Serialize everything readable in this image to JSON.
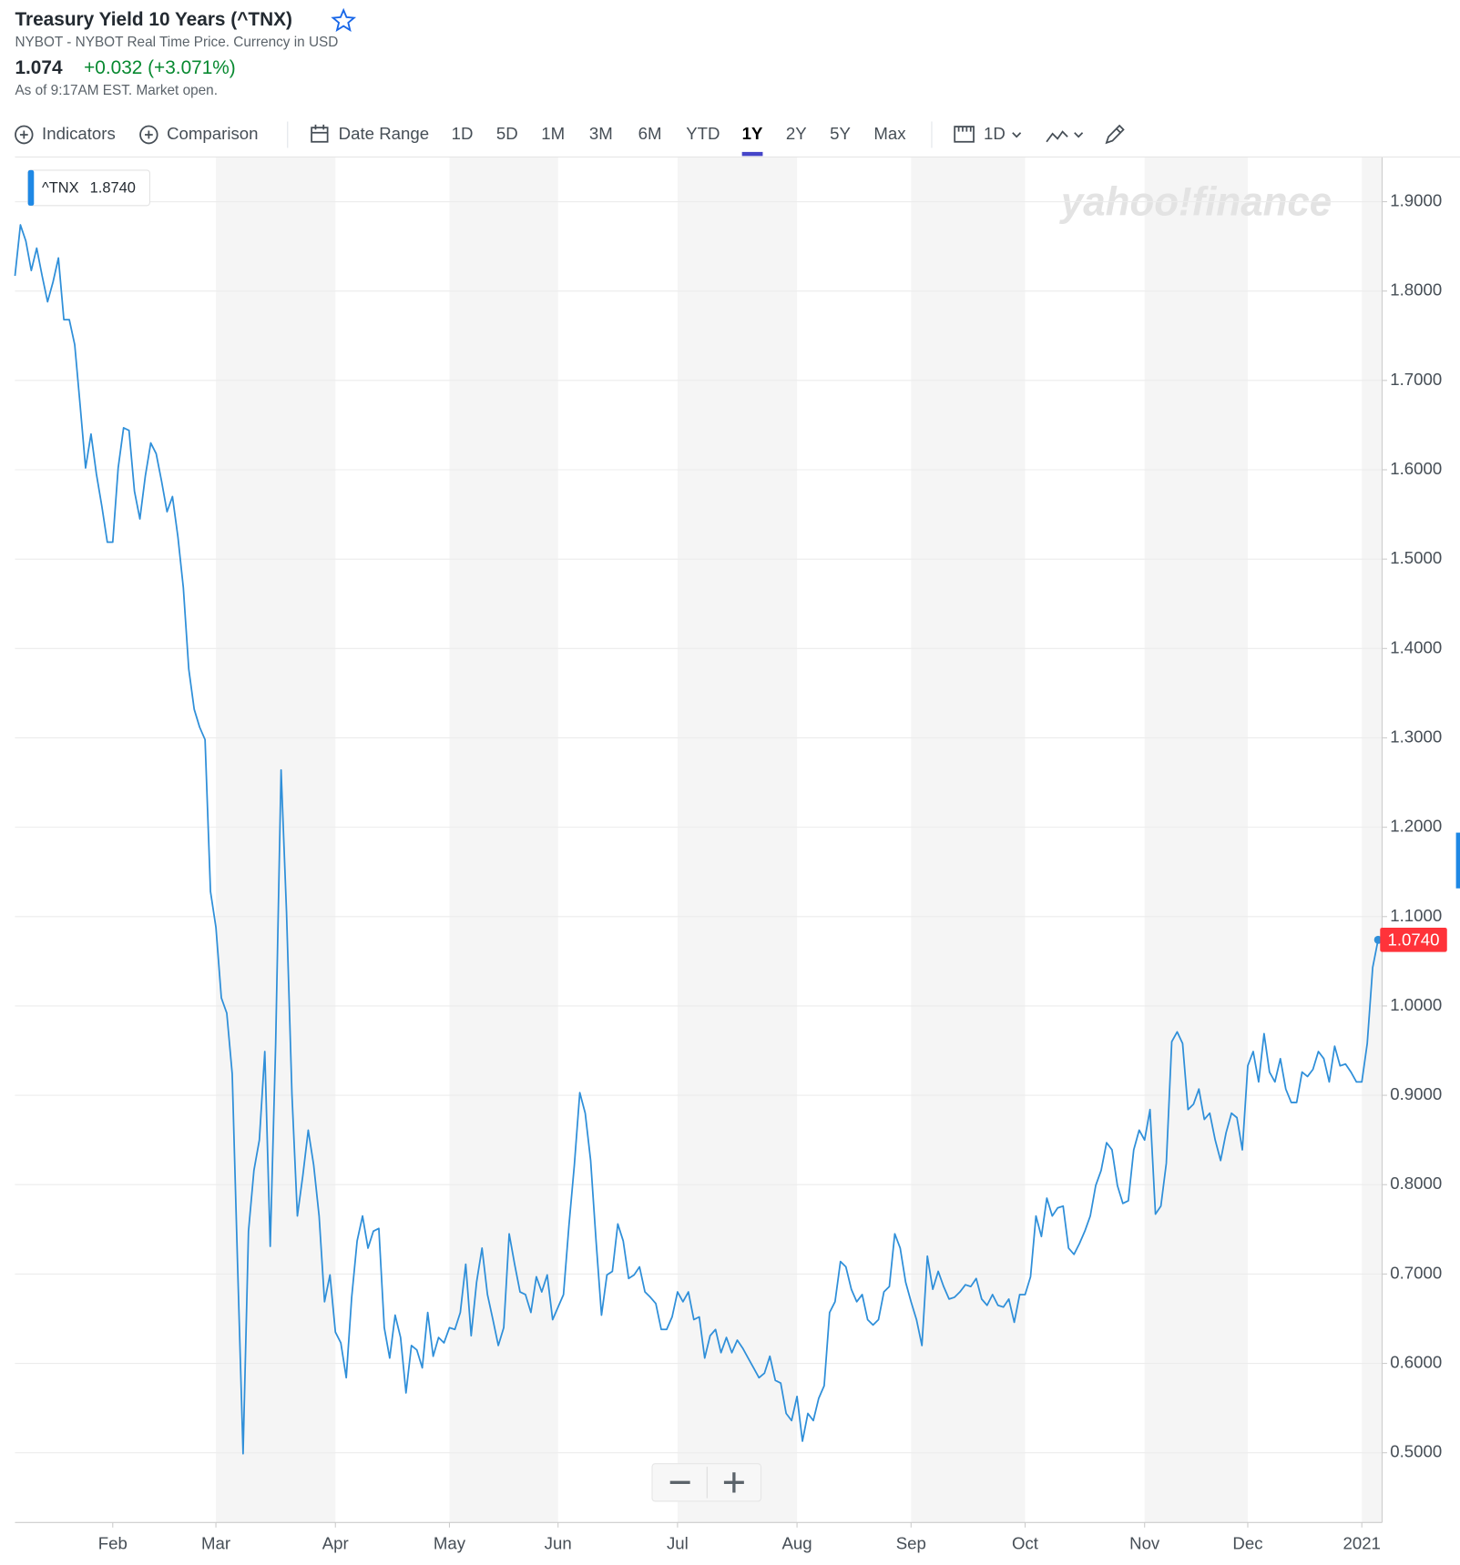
{
  "header": {
    "title": "Treasury Yield 10 Years (^TNX)",
    "subtitle": "NYBOT - NYBOT Real Time Price. Currency in USD",
    "price": 1.074,
    "change": "+0.032 (+3.071%)",
    "as_of": "As of 9:17AM EST. Market open."
  },
  "toolbar": {
    "indicators": "Indicators",
    "comparison": "Comparison",
    "date_range": "Date Range",
    "ranges": [
      "1D",
      "5D",
      "1M",
      "3M",
      "6M",
      "YTD",
      "1Y",
      "2Y",
      "5Y",
      "Max"
    ],
    "selected_range": "1Y",
    "interval": "1D"
  },
  "chart_data": {
    "type": "line",
    "watermark": "yahoo!finance",
    "tooltip": {
      "value": 1.874,
      "label": "1.8740"
    },
    "last_price": {
      "value": 1.074,
      "label": "1.0740"
    },
    "ylim": [
      0.422,
      1.95
    ],
    "grid": true,
    "shaded_months": true,
    "yticks": [
      {
        "value": 0.5,
        "label": "0.5000"
      },
      {
        "value": 0.6,
        "label": "0.6000"
      },
      {
        "value": 0.7,
        "label": "0.7000"
      },
      {
        "value": 0.8,
        "label": "0.8000"
      },
      {
        "value": 0.9,
        "label": "0.9000"
      },
      {
        "value": 1.0,
        "label": "1.0000"
      },
      {
        "value": 1.1,
        "label": "1.1000"
      },
      {
        "value": 1.2,
        "label": "1.2000"
      },
      {
        "value": 1.3,
        "label": "1.3000"
      },
      {
        "value": 1.4,
        "label": "1.4000"
      },
      {
        "value": 1.5,
        "label": "1.5000"
      },
      {
        "value": 1.6,
        "label": "1.6000"
      },
      {
        "value": 1.7,
        "label": "1.7000"
      },
      {
        "value": 1.8,
        "label": "1.8000"
      },
      {
        "value": 1.9,
        "label": "1.9000"
      }
    ],
    "categories": [
      null,
      null,
      null,
      null,
      null,
      null,
      null,
      null,
      null,
      null,
      null,
      null,
      null,
      null,
      null,
      null,
      null,
      null,
      "Feb",
      null,
      null,
      null,
      null,
      null,
      null,
      null,
      null,
      null,
      null,
      null,
      null,
      null,
      null,
      null,
      null,
      null,
      null,
      "Mar",
      null,
      null,
      null,
      null,
      null,
      null,
      null,
      null,
      null,
      null,
      null,
      null,
      null,
      null,
      null,
      null,
      null,
      null,
      null,
      null,
      null,
      "Apr",
      null,
      null,
      null,
      null,
      null,
      null,
      null,
      null,
      null,
      null,
      null,
      null,
      null,
      null,
      null,
      null,
      null,
      null,
      null,
      null,
      "May",
      null,
      null,
      null,
      null,
      null,
      null,
      null,
      null,
      null,
      null,
      null,
      null,
      null,
      null,
      null,
      null,
      null,
      null,
      null,
      "Jun",
      null,
      null,
      null,
      null,
      null,
      null,
      null,
      null,
      null,
      null,
      null,
      null,
      null,
      null,
      null,
      null,
      null,
      null,
      null,
      null,
      null,
      "Jul",
      null,
      null,
      null,
      null,
      null,
      null,
      null,
      null,
      null,
      null,
      null,
      null,
      null,
      null,
      null,
      null,
      null,
      null,
      null,
      null,
      null,
      "Aug",
      null,
      null,
      null,
      null,
      null,
      null,
      null,
      null,
      null,
      null,
      null,
      null,
      null,
      null,
      null,
      null,
      null,
      null,
      null,
      null,
      "Sep",
      null,
      null,
      null,
      null,
      null,
      null,
      null,
      null,
      null,
      null,
      null,
      null,
      null,
      null,
      null,
      null,
      null,
      null,
      null,
      null,
      "Oct",
      null,
      null,
      null,
      null,
      null,
      null,
      null,
      null,
      null,
      null,
      null,
      null,
      null,
      null,
      null,
      null,
      null,
      null,
      null,
      null,
      null,
      "Nov",
      null,
      null,
      null,
      null,
      null,
      null,
      null,
      null,
      null,
      null,
      null,
      null,
      null,
      null,
      null,
      null,
      null,
      null,
      "Dec",
      null,
      null,
      null,
      null,
      null,
      null,
      null,
      null,
      null,
      null,
      null,
      null,
      null,
      null,
      null,
      null,
      null,
      null,
      null,
      null,
      "2021",
      null,
      null,
      null
    ],
    "series": [
      {
        "name": "^TNX",
        "color": "#2f8fd9",
        "values": [
          1.817,
          1.874,
          1.856,
          1.823,
          1.848,
          1.817,
          1.788,
          1.81,
          1.837,
          1.768,
          1.768,
          1.74,
          1.672,
          1.602,
          1.64,
          1.595,
          1.559,
          1.519,
          1.519,
          1.602,
          1.647,
          1.644,
          1.576,
          1.545,
          1.593,
          1.63,
          1.618,
          1.587,
          1.553,
          1.57,
          1.525,
          1.468,
          1.377,
          1.332,
          1.312,
          1.298,
          1.128,
          1.088,
          1.009,
          0.992,
          0.924,
          0.708,
          0.499,
          0.748,
          0.816,
          0.85,
          0.949,
          0.731,
          0.958,
          1.264,
          1.105,
          0.901,
          0.765,
          0.81,
          0.861,
          0.822,
          0.765,
          0.669,
          0.699,
          0.635,
          0.623,
          0.584,
          0.674,
          0.737,
          0.765,
          0.729,
          0.748,
          0.751,
          0.64,
          0.606,
          0.654,
          0.629,
          0.567,
          0.62,
          0.615,
          0.595,
          0.657,
          0.608,
          0.629,
          0.623,
          0.64,
          0.638,
          0.657,
          0.711,
          0.631,
          0.691,
          0.729,
          0.677,
          0.649,
          0.62,
          0.64,
          0.745,
          0.711,
          0.68,
          0.677,
          0.657,
          0.697,
          0.68,
          0.699,
          0.649,
          0.663,
          0.677,
          0.754,
          0.822,
          0.903,
          0.88,
          0.827,
          0.737,
          0.654,
          0.699,
          0.703,
          0.756,
          0.737,
          0.695,
          0.699,
          0.708,
          0.68,
          0.674,
          0.667,
          0.638,
          0.638,
          0.652,
          0.68,
          0.669,
          0.68,
          0.649,
          0.652,
          0.606,
          0.631,
          0.638,
          0.612,
          0.629,
          0.612,
          0.626,
          0.617,
          0.606,
          0.595,
          0.584,
          0.589,
          0.608,
          0.581,
          0.578,
          0.544,
          0.536,
          0.563,
          0.513,
          0.544,
          0.536,
          0.561,
          0.575,
          0.657,
          0.669,
          0.714,
          0.708,
          0.683,
          0.669,
          0.677,
          0.649,
          0.643,
          0.649,
          0.68,
          0.686,
          0.745,
          0.729,
          0.691,
          0.669,
          0.649,
          0.62,
          0.72,
          0.683,
          0.703,
          0.686,
          0.672,
          0.674,
          0.68,
          0.688,
          0.686,
          0.695,
          0.672,
          0.665,
          0.677,
          0.665,
          0.663,
          0.672,
          0.646,
          0.677,
          0.677,
          0.697,
          0.765,
          0.742,
          0.785,
          0.765,
          0.774,
          0.776,
          0.729,
          0.722,
          0.734,
          0.748,
          0.765,
          0.799,
          0.816,
          0.847,
          0.839,
          0.799,
          0.779,
          0.782,
          0.839,
          0.861,
          0.85,
          0.884,
          0.767,
          0.776,
          0.824,
          0.96,
          0.971,
          0.958,
          0.884,
          0.89,
          0.907,
          0.873,
          0.88,
          0.85,
          0.827,
          0.858,
          0.88,
          0.875,
          0.839,
          0.933,
          0.949,
          0.915,
          0.969,
          0.926,
          0.915,
          0.941,
          0.907,
          0.892,
          0.892,
          0.926,
          0.921,
          0.929,
          0.949,
          0.941,
          0.915,
          0.955,
          0.933,
          0.935,
          0.926,
          0.915,
          0.915,
          0.958,
          1.043,
          1.074
        ]
      }
    ]
  }
}
